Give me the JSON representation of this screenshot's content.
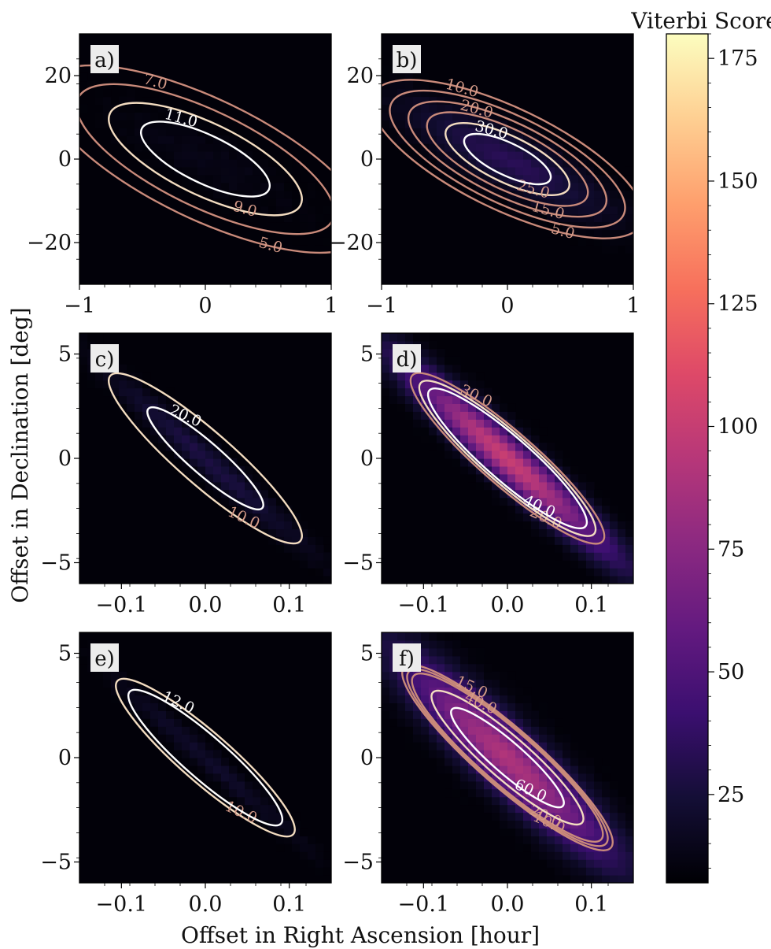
{
  "figure": {
    "xlabel": "Offset in Right Ascension [hour]",
    "ylabel": "Offset in Declination [deg]",
    "colorbar": {
      "label": "Viterbi Score",
      "ticks": [
        "25",
        "50",
        "75",
        "100",
        "125",
        "150",
        "175"
      ],
      "range": [
        7,
        180
      ],
      "colormap": [
        "#000004",
        "#140e36",
        "#3b0f70",
        "#641a80",
        "#8c2981",
        "#b73779",
        "#de4968",
        "#f7705c",
        "#fe9f6d",
        "#fecf92",
        "#fcfdbf"
      ]
    }
  },
  "chart_data": [
    {
      "type": "contour",
      "label": "a)",
      "xlim": [
        -1,
        1
      ],
      "ylim": [
        -30,
        30
      ],
      "xticks": [
        "−1",
        "0",
        "1"
      ],
      "yticks": [
        "−20",
        "0",
        "20"
      ],
      "xtick_values": [
        -1,
        0,
        1
      ],
      "ytick_values": [
        -20,
        0,
        20
      ],
      "contour_levels": [
        5.0,
        7.0,
        9.0,
        11.0
      ],
      "contour_labels": [
        "5.0",
        "7.0",
        "9.0",
        "11.0"
      ],
      "peak_value": 13,
      "slope": -14.5,
      "ridge_halfwidth": 1.0
    },
    {
      "type": "contour",
      "label": "b)",
      "xlim": [
        -1,
        1
      ],
      "ylim": [
        -30,
        30
      ],
      "xticks": [
        "−1",
        "0",
        "1"
      ],
      "yticks": [
        "−20",
        "0",
        "20"
      ],
      "xtick_values": [
        -1,
        0,
        1
      ],
      "ytick_values": [
        -20,
        0,
        20
      ],
      "contour_levels": [
        5.0,
        10.0,
        15.0,
        20.0,
        25.0,
        30.0
      ],
      "contour_labels": [
        "5.0",
        "10.0",
        "15.0",
        "20.0",
        "25.0",
        "30.0"
      ],
      "peak_value": 33,
      "slope": -14.5,
      "ridge_halfwidth": 1.0
    },
    {
      "type": "contour",
      "label": "c)",
      "xlim": [
        -0.15,
        0.15
      ],
      "ylim": [
        -6,
        6
      ],
      "xticks": [
        "−0.1",
        "0.0",
        "0.1"
      ],
      "yticks": [
        "−5",
        "0",
        "5"
      ],
      "xtick_values": [
        -0.1,
        0,
        0.1
      ],
      "ytick_values": [
        -5,
        0,
        5
      ],
      "contour_levels": [
        10.0,
        20.0
      ],
      "contour_labels": [
        "10.0",
        "20.0"
      ],
      "peak_value": 28,
      "slope": -35,
      "ridge_halfwidth": 0.6
    },
    {
      "type": "contour",
      "label": "d)",
      "xlim": [
        -0.15,
        0.15
      ],
      "ylim": [
        -6,
        6
      ],
      "xticks": [
        "−0.1",
        "0.0",
        "0.1"
      ],
      "yticks": [
        "−5",
        "0",
        "5"
      ],
      "xtick_values": [
        -0.1,
        0,
        0.1
      ],
      "ytick_values": [
        -5,
        0,
        5
      ],
      "contour_levels": [
        20.0,
        30.0,
        40.0
      ],
      "contour_labels": [
        "20.0",
        "30.0",
        "40.0"
      ],
      "peak_value": 100,
      "slope": -35,
      "ridge_halfwidth": 0.9
    },
    {
      "type": "contour",
      "label": "e)",
      "xlim": [
        -0.15,
        0.15
      ],
      "ylim": [
        -6,
        6
      ],
      "xticks": [
        "−0.1",
        "0.0",
        "0.1"
      ],
      "yticks": [
        "−5",
        "0",
        "5"
      ],
      "xtick_values": [
        -0.1,
        0,
        0.1
      ],
      "ytick_values": [
        -5,
        0,
        5
      ],
      "contour_levels": [
        10.0,
        12.0
      ],
      "contour_labels": [
        "10.0",
        "12.0"
      ],
      "peak_value": 20,
      "slope": -35,
      "ridge_halfwidth": 0.5
    },
    {
      "type": "contour",
      "label": "f)",
      "xlim": [
        -0.15,
        0.15
      ],
      "ylim": [
        -6,
        6
      ],
      "xticks": [
        "−0.1",
        "0.0",
        "0.1"
      ],
      "yticks": [
        "−5",
        "0",
        "5"
      ],
      "xtick_values": [
        -0.1,
        0,
        0.1
      ],
      "ytick_values": [
        -5,
        0,
        5
      ],
      "contour_levels": [
        10.0,
        15.0,
        20.0,
        40.0,
        60.0
      ],
      "contour_labels": [
        "10.0",
        "15.0",
        "20.0",
        "40.0",
        "60.0"
      ],
      "peak_value": 90,
      "slope": -35,
      "ridge_halfwidth": 1.3
    }
  ]
}
